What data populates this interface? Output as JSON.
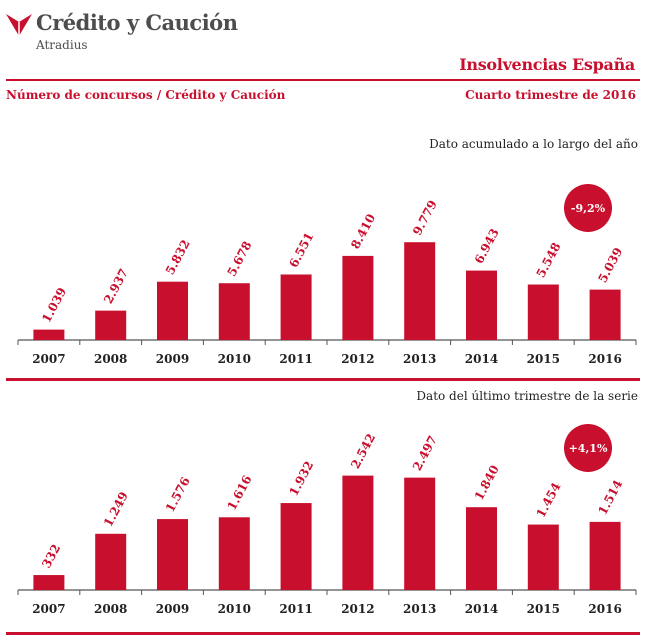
{
  "header": {
    "brand_name": "Crédito y Caución",
    "brand_sub": "Atradius",
    "title": "Insolvencias España",
    "subtitle_left": "Número de concursos  / Crédito y Caución",
    "subtitle_right": "Cuarto trimestre de 2016"
  },
  "colors": {
    "accent": "#c8102e",
    "text": "#222222",
    "logo_gray": "#4d4d4d"
  },
  "chart_data": [
    {
      "type": "bar",
      "title": "Dato acumulado a lo largo del año",
      "categories": [
        "2007",
        "2008",
        "2009",
        "2010",
        "2011",
        "2012",
        "2013",
        "2014",
        "2015",
        "2016"
      ],
      "values": [
        1039,
        2937,
        5832,
        5678,
        6551,
        8410,
        9779,
        6943,
        5548,
        5039
      ],
      "value_labels": [
        "1.039",
        "2.937",
        "5.832",
        "5.678",
        "6.551",
        "8.410",
        "9.779",
        "6.943",
        "5.548",
        "5.039"
      ],
      "ylim": [
        0,
        10000
      ],
      "grid": false,
      "badge": "-9,2%"
    },
    {
      "type": "bar",
      "title": "Dato del último trimestre de la serie",
      "categories": [
        "2007",
        "2008",
        "2009",
        "2010",
        "2011",
        "2012",
        "2013",
        "2014",
        "2015",
        "2016"
      ],
      "values": [
        332,
        1249,
        1576,
        1616,
        1932,
        2542,
        2497,
        1840,
        1454,
        1514
      ],
      "value_labels": [
        "332",
        "1.249",
        "1.576",
        "1.616",
        "1.932",
        "2.542",
        "2.497",
        "1.840",
        "1.454",
        "1.514"
      ],
      "ylim": [
        0,
        2600
      ],
      "grid": false,
      "badge": "+4,1%"
    }
  ]
}
